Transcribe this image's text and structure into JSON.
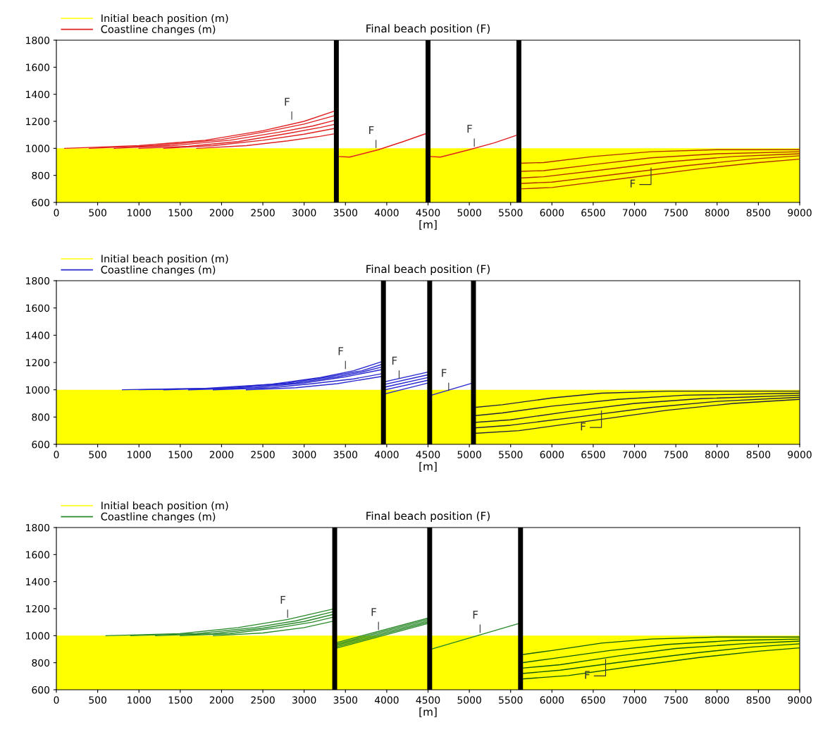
{
  "chart_data": [
    {
      "type": "line",
      "title": "Final beach position (F)",
      "xlabel": "[m]",
      "xlim": [
        0,
        9000
      ],
      "xticks": [
        0,
        500,
        1000,
        1500,
        2000,
        2500,
        3000,
        3500,
        4000,
        4500,
        5000,
        5500,
        6000,
        6500,
        7000,
        7500,
        8000,
        8500,
        9000
      ],
      "ylim": [
        600,
        1800
      ],
      "yticks": [
        600,
        800,
        1000,
        1200,
        1400,
        1600,
        1800
      ],
      "grid": false,
      "legend": "top left",
      "series": [
        {
          "name": "Initial beach position (m)",
          "type": "area",
          "color": "#ffff00",
          "x": [
            0,
            9000
          ],
          "values": [
            1000,
            1000
          ]
        },
        {
          "name": "Coastline changes (m)",
          "color": "#e02020",
          "x": [
            100,
            1000,
            1800,
            2500,
            3000,
            3390
          ],
          "values": [
            1000,
            1020,
            1060,
            1130,
            1200,
            1280
          ]
        },
        {
          "color": "#e02020",
          "x": [
            400,
            1200,
            2000,
            2600,
            3000,
            3390
          ],
          "values": [
            1000,
            1020,
            1065,
            1130,
            1180,
            1245
          ]
        },
        {
          "color": "#e02020",
          "x": [
            700,
            1400,
            2100,
            2700,
            3100,
            3390
          ],
          "values": [
            1000,
            1020,
            1060,
            1120,
            1165,
            1210
          ]
        },
        {
          "color": "#e02020",
          "x": [
            1000,
            1600,
            2200,
            2800,
            3200,
            3390
          ],
          "values": [
            1000,
            1015,
            1050,
            1110,
            1155,
            1180
          ]
        },
        {
          "color": "#e02020",
          "x": [
            1300,
            1900,
            2500,
            3000,
            3390
          ],
          "values": [
            1000,
            1020,
            1060,
            1105,
            1150
          ]
        },
        {
          "color": "#e02020",
          "x": [
            1700,
            2300,
            2800,
            3200,
            3390
          ],
          "values": [
            1000,
            1020,
            1055,
            1090,
            1110
          ]
        },
        {
          "color": "#e02020",
          "x": [
            3410,
            3550,
            3900,
            4200,
            4480
          ],
          "values": [
            940,
            935,
            990,
            1050,
            1110
          ]
        },
        {
          "color": "#e02020",
          "x": [
            4520,
            4650,
            5000,
            5300,
            5590
          ],
          "values": [
            940,
            935,
            990,
            1040,
            1100
          ]
        },
        {
          "color": "#b03000",
          "x": [
            5610,
            5900,
            6500,
            7200,
            8000,
            9000
          ],
          "values": [
            890,
            895,
            940,
            975,
            990,
            990
          ]
        },
        {
          "color": "#b03000",
          "x": [
            5610,
            5900,
            6500,
            7200,
            8000,
            9000
          ],
          "values": [
            830,
            835,
            880,
            930,
            960,
            975
          ]
        },
        {
          "color": "#b03000",
          "x": [
            5610,
            5900,
            6600,
            7400,
            8200,
            9000
          ],
          "values": [
            780,
            790,
            840,
            900,
            940,
            960
          ]
        },
        {
          "color": "#b03000",
          "x": [
            5610,
            6000,
            6800,
            7600,
            8400,
            9000
          ],
          "values": [
            740,
            750,
            810,
            870,
            920,
            945
          ]
        },
        {
          "color": "#b03000",
          "x": [
            5610,
            6000,
            6900,
            7800,
            8500,
            9000
          ],
          "values": [
            700,
            710,
            780,
            850,
            895,
            920
          ]
        }
      ],
      "ref_lines": [
        {
          "axis": "x",
          "value": 3390,
          "color": "#000000"
        },
        {
          "axis": "x",
          "value": 4500,
          "color": "#000000"
        },
        {
          "axis": "x",
          "value": 5600,
          "color": "#000000"
        }
      ],
      "annotations": [
        {
          "text": "F",
          "x": 2850,
          "y": 1200
        },
        {
          "text": "F",
          "x": 3870,
          "y": 990
        },
        {
          "text": "F",
          "x": 5060,
          "y": 1000
        },
        {
          "text": "F",
          "x": 7200,
          "y": 870
        }
      ]
    },
    {
      "type": "line",
      "title": "Final beach position (F)",
      "xlabel": "[m]",
      "xlim": [
        0,
        9000
      ],
      "xticks": [
        0,
        500,
        1000,
        1500,
        2000,
        2500,
        3000,
        3500,
        4000,
        4500,
        5000,
        5500,
        6000,
        6500,
        7000,
        7500,
        8000,
        8500,
        9000
      ],
      "ylim": [
        600,
        1800
      ],
      "yticks": [
        600,
        800,
        1000,
        1200,
        1400,
        1600,
        1800
      ],
      "grid": false,
      "legend": "top left",
      "series": [
        {
          "name": "Initial beach position (m)",
          "type": "area",
          "color": "#ffff00",
          "x": [
            0,
            9000
          ],
          "values": [
            1000,
            1000
          ]
        },
        {
          "name": "Coastline changes (m)",
          "color": "#2828d0",
          "x": [
            800,
            1800,
            2600,
            3200,
            3600,
            3960
          ],
          "values": [
            1000,
            1010,
            1040,
            1090,
            1140,
            1210
          ]
        },
        {
          "color": "#2828d0",
          "x": [
            1000,
            2000,
            2800,
            3300,
            3700,
            3960
          ],
          "values": [
            1000,
            1012,
            1050,
            1095,
            1140,
            1190
          ]
        },
        {
          "color": "#2828d0",
          "x": [
            1300,
            2200,
            2900,
            3400,
            3700,
            3960
          ],
          "values": [
            1000,
            1015,
            1050,
            1095,
            1130,
            1170
          ]
        },
        {
          "color": "#2828d0",
          "x": [
            1600,
            2400,
            3000,
            3500,
            3960
          ],
          "values": [
            1000,
            1015,
            1050,
            1095,
            1150
          ]
        },
        {
          "color": "#2828d0",
          "x": [
            1900,
            2600,
            3100,
            3600,
            3960
          ],
          "values": [
            1000,
            1015,
            1045,
            1080,
            1120
          ]
        },
        {
          "color": "#2828d0",
          "x": [
            2300,
            2900,
            3400,
            3960
          ],
          "values": [
            1000,
            1015,
            1045,
            1100
          ]
        },
        {
          "color": "#2828d0",
          "x": [
            3980,
            4500
          ],
          "values": [
            1060,
            1130
          ]
        },
        {
          "color": "#2828d0",
          "x": [
            3980,
            4500
          ],
          "values": [
            1040,
            1110
          ]
        },
        {
          "color": "#2828d0",
          "x": [
            3980,
            4500
          ],
          "values": [
            1020,
            1090
          ]
        },
        {
          "color": "#2828d0",
          "x": [
            3980,
            4500
          ],
          "values": [
            1000,
            1070
          ]
        },
        {
          "color": "#2828d0",
          "x": [
            3980,
            4500
          ],
          "values": [
            970,
            1050
          ]
        },
        {
          "color": "#2828d0",
          "x": [
            4540,
            5040
          ],
          "values": [
            960,
            1050
          ]
        },
        {
          "color": "#202040",
          "x": [
            5060,
            5400,
            6000,
            6600,
            7400,
            9000
          ],
          "values": [
            870,
            890,
            940,
            975,
            990,
            990
          ]
        },
        {
          "color": "#202040",
          "x": [
            5060,
            5400,
            6000,
            6800,
            7600,
            9000
          ],
          "values": [
            810,
            830,
            880,
            930,
            960,
            975
          ]
        },
        {
          "color": "#202040",
          "x": [
            5060,
            5500,
            6200,
            7000,
            7800,
            9000
          ],
          "values": [
            760,
            780,
            840,
            900,
            935,
            960
          ]
        },
        {
          "color": "#202040",
          "x": [
            5060,
            5500,
            6300,
            7200,
            8000,
            9000
          ],
          "values": [
            720,
            740,
            800,
            870,
            915,
            945
          ]
        },
        {
          "color": "#202040",
          "x": [
            5060,
            5600,
            6500,
            7400,
            8200,
            9000
          ],
          "values": [
            680,
            700,
            775,
            850,
            900,
            930
          ]
        }
      ],
      "ref_lines": [
        {
          "axis": "x",
          "value": 3960,
          "color": "#000000"
        },
        {
          "axis": "x",
          "value": 4520,
          "color": "#000000"
        },
        {
          "axis": "x",
          "value": 5050,
          "color": "#000000"
        }
      ],
      "annotations": [
        {
          "text": "F",
          "x": 3500,
          "y": 1140
        },
        {
          "text": "F",
          "x": 4150,
          "y": 1070
        },
        {
          "text": "F",
          "x": 4750,
          "y": 980
        },
        {
          "text": "F",
          "x": 6600,
          "y": 860
        }
      ]
    },
    {
      "type": "line",
      "title": "Final beach position (F)",
      "xlabel": "[m]",
      "xlim": [
        0,
        9000
      ],
      "xticks": [
        0,
        500,
        1000,
        1500,
        2000,
        2500,
        3000,
        3500,
        4000,
        4500,
        5000,
        5500,
        6000,
        6500,
        7000,
        7500,
        8000,
        8500,
        9000
      ],
      "ylim": [
        600,
        1800
      ],
      "yticks": [
        600,
        800,
        1000,
        1200,
        1400,
        1600,
        1800
      ],
      "grid": false,
      "legend": "top left",
      "series": [
        {
          "name": "Initial beach position (m)",
          "type": "area",
          "color": "#ffff00",
          "x": [
            0,
            9000
          ],
          "values": [
            1000,
            1000
          ]
        },
        {
          "name": "Coastline changes (m)",
          "color": "#2a8a2a",
          "x": [
            600,
            1500,
            2200,
            2800,
            3370
          ],
          "values": [
            1000,
            1015,
            1060,
            1120,
            1200
          ]
        },
        {
          "color": "#2a8a2a",
          "x": [
            900,
            1700,
            2400,
            2900,
            3370
          ],
          "values": [
            1000,
            1015,
            1060,
            1110,
            1180
          ]
        },
        {
          "color": "#2a8a2a",
          "x": [
            1200,
            1900,
            2500,
            3000,
            3370
          ],
          "values": [
            1000,
            1015,
            1055,
            1105,
            1160
          ]
        },
        {
          "color": "#2a8a2a",
          "x": [
            1500,
            2100,
            2700,
            3100,
            3370
          ],
          "values": [
            1000,
            1015,
            1060,
            1100,
            1140
          ]
        },
        {
          "color": "#2a8a2a",
          "x": [
            1900,
            2500,
            3000,
            3370
          ],
          "values": [
            1000,
            1020,
            1060,
            1110
          ]
        },
        {
          "color": "#2a8a2a",
          "x": [
            3400,
            4500
          ],
          "values": [
            950,
            1130
          ]
        },
        {
          "color": "#2a8a2a",
          "x": [
            3400,
            4500
          ],
          "values": [
            940,
            1120
          ]
        },
        {
          "color": "#2a8a2a",
          "x": [
            3400,
            4500
          ],
          "values": [
            930,
            1110
          ]
        },
        {
          "color": "#2a8a2a",
          "x": [
            3400,
            4500
          ],
          "values": [
            920,
            1100
          ]
        },
        {
          "color": "#2a8a2a",
          "x": [
            3400,
            4500
          ],
          "values": [
            910,
            1090
          ]
        },
        {
          "color": "#2a8a2a",
          "x": [
            4540,
            5600
          ],
          "values": [
            900,
            1090
          ]
        },
        {
          "color": "#0e5a0e",
          "x": [
            5640,
            6000,
            6600,
            7200,
            8000,
            9000
          ],
          "values": [
            860,
            890,
            945,
            975,
            990,
            990
          ]
        },
        {
          "color": "#0e5a0e",
          "x": [
            5640,
            6000,
            6700,
            7400,
            8200,
            9000
          ],
          "values": [
            800,
            830,
            890,
            935,
            965,
            975
          ]
        },
        {
          "color": "#0e5a0e",
          "x": [
            5640,
            6100,
            6800,
            7500,
            8300,
            9000
          ],
          "values": [
            760,
            785,
            850,
            905,
            940,
            960
          ]
        },
        {
          "color": "#0e5a0e",
          "x": [
            5640,
            6100,
            6900,
            7700,
            8400,
            9000
          ],
          "values": [
            720,
            745,
            810,
            870,
            915,
            940
          ]
        },
        {
          "color": "#0e5a0e",
          "x": [
            5640,
            6200,
            7000,
            7800,
            8500,
            9000
          ],
          "values": [
            680,
            705,
            775,
            840,
            885,
            910
          ]
        }
      ],
      "ref_lines": [
        {
          "axis": "x",
          "value": 3370,
          "color": "#000000"
        },
        {
          "axis": "x",
          "value": 4520,
          "color": "#000000"
        },
        {
          "axis": "x",
          "value": 5620,
          "color": "#000000"
        }
      ],
      "annotations": [
        {
          "text": "F",
          "x": 2800,
          "y": 1120
        },
        {
          "text": "F",
          "x": 3900,
          "y": 1030
        },
        {
          "text": "F",
          "x": 5130,
          "y": 1010
        },
        {
          "text": "F",
          "x": 6650,
          "y": 840
        }
      ]
    }
  ]
}
